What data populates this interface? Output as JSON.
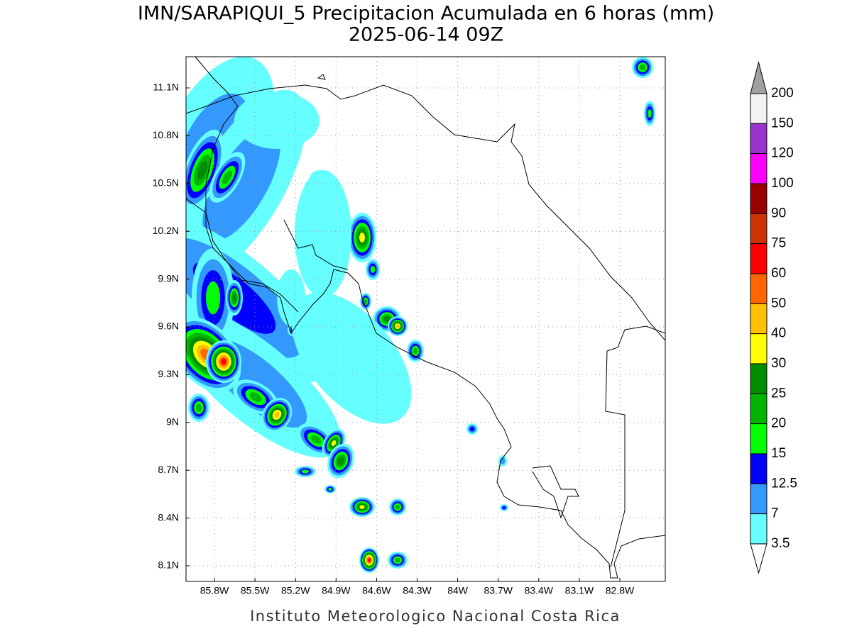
{
  "title": "IMN/SARAPIQUI_5 Precipitacion Acumulada en 6 horas (mm)",
  "subtitle": "2025-06-14 09Z",
  "lat_labels": [
    "11.1N",
    "10.8N",
    "10.5N",
    "10.2N",
    "9.9N",
    "9.6N",
    "9.3N",
    "9N",
    "8.7N",
    "8.4N",
    "8.1N"
  ],
  "lon_labels": [
    "85.8W",
    "85.5W",
    "85.2W",
    "84.9W",
    "84.6W",
    "84.3W",
    "84W",
    "83.7W",
    "83.4W",
    "83.1W",
    "82.8W"
  ],
  "legend": [
    {
      "label": "200",
      "color": "#a0a0a0"
    },
    {
      "label": "150",
      "color": "#f2f2f2"
    },
    {
      "label": "120",
      "color": "#9933cc"
    },
    {
      "label": "100",
      "color": "#ff00ff"
    },
    {
      "label": "90",
      "color": "#990000"
    },
    {
      "label": "75",
      "color": "#cc3300"
    },
    {
      "label": "60",
      "color": "#ff0000"
    },
    {
      "label": "50",
      "color": "#ff6600"
    },
    {
      "label": "40",
      "color": "#ffc000"
    },
    {
      "label": "30",
      "color": "#ffff00"
    },
    {
      "label": "25",
      "color": "#008c00"
    },
    {
      "label": "20",
      "color": "#00b400"
    },
    {
      "label": "15",
      "color": "#00ff00"
    },
    {
      "label": "12.5",
      "color": "#0000ff"
    },
    {
      "label": "7",
      "color": "#3399ff"
    },
    {
      "label": "3.5",
      "color": "#66ffff"
    }
  ],
  "footer": "Instituto Meteorologico Nacional Costa Rica"
}
